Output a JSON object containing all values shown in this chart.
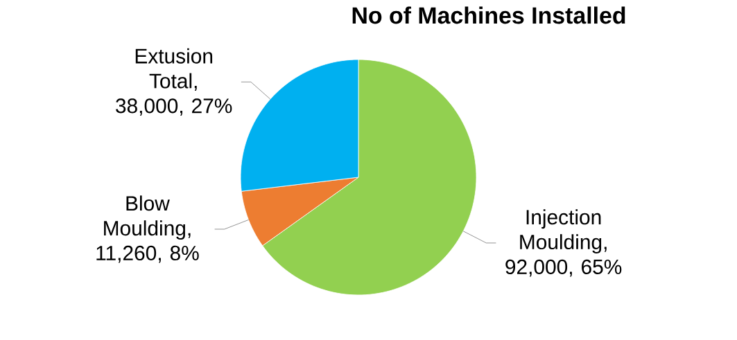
{
  "chart_data": {
    "type": "pie",
    "title": "No of Machines Installed",
    "categories": [
      "Injection Moulding",
      "Blow Moulding",
      "Extusion Total"
    ],
    "values": [
      92000,
      11260,
      38000
    ],
    "colors": [
      "#92d050",
      "#ed7d31",
      "#00b0f0"
    ],
    "value_labels": [
      ", 92,000, 65%",
      ", 11,260, 8%",
      ", 38,000, 27%"
    ]
  }
}
